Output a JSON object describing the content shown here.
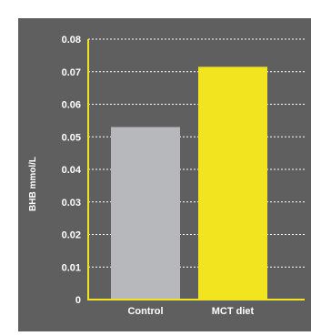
{
  "chart_data": {
    "type": "bar",
    "categories": [
      "Control",
      "MCT diet"
    ],
    "values": [
      0.053,
      0.0715
    ],
    "ylabel": "BHB mmol/L",
    "xlabel": "",
    "title": "",
    "ylim": [
      0,
      0.08
    ],
    "yticks": [
      "0",
      "0.01",
      "0.02",
      "0.03",
      "0.04",
      "0.05",
      "0.06",
      "0.07",
      "0.08"
    ],
    "grid": true,
    "grid_style": "dashed",
    "legend": "none",
    "colors": {
      "background": "#5f5f5f",
      "axis": "#f2e41f",
      "grid": "#ffffff",
      "bars": [
        "#b7b8bc",
        "#f2e41f"
      ],
      "text": "#ffffff"
    }
  }
}
